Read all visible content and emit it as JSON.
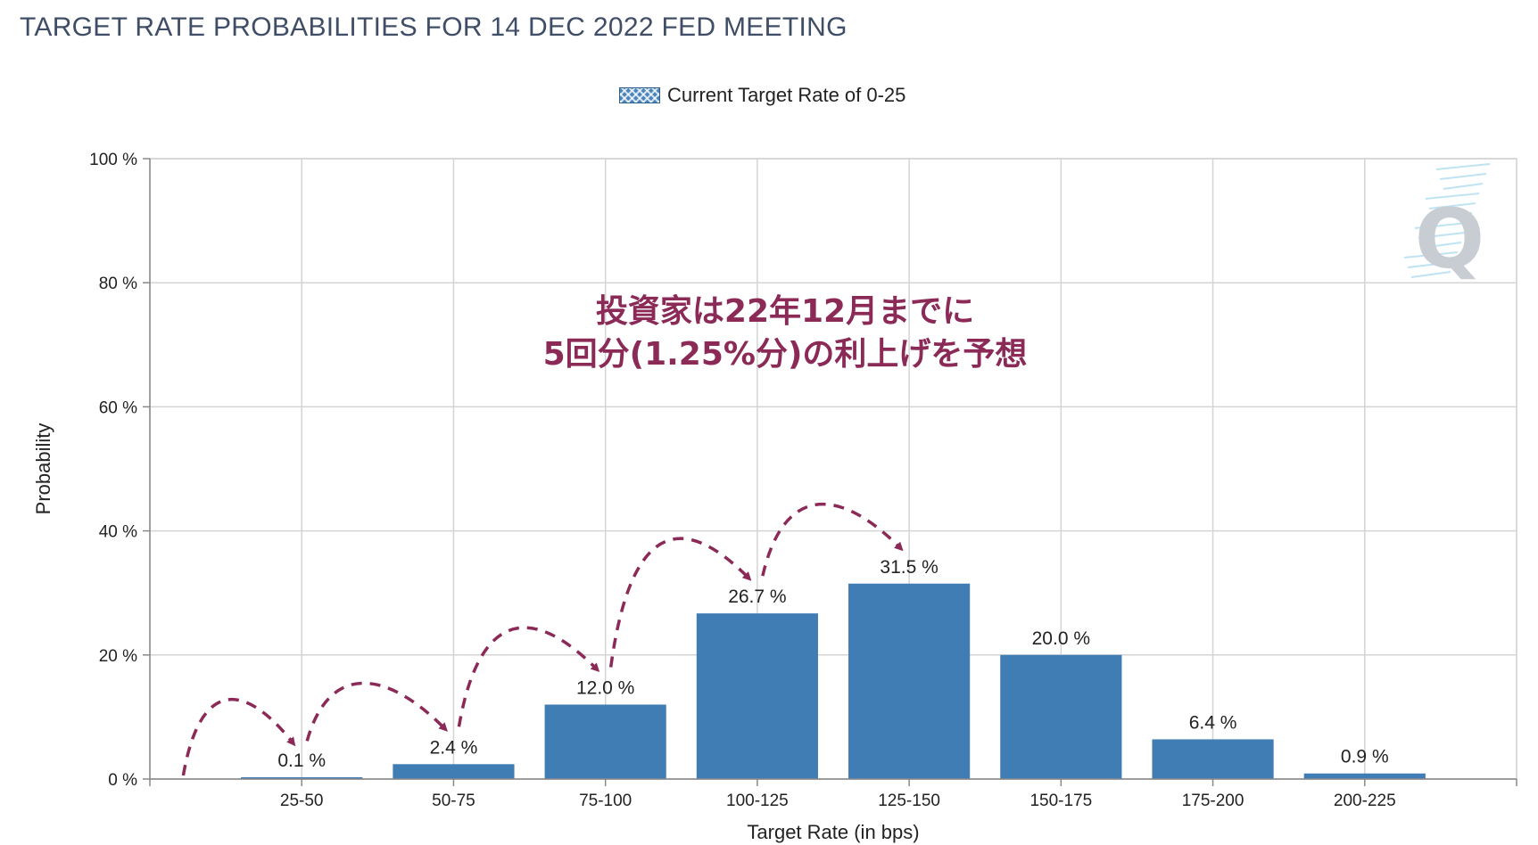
{
  "chart_data": {
    "type": "bar",
    "title": "TARGET RATE PROBABILITIES FOR 14 DEC 2022 FED MEETING",
    "xlabel": "Target Rate (in bps)",
    "ylabel": "Probability",
    "categories": [
      "25-50",
      "50-75",
      "75-100",
      "100-125",
      "125-150",
      "150-175",
      "175-200",
      "200-225"
    ],
    "series": [
      {
        "name": "Current Target Rate of 0-25",
        "values": [
          0.1,
          2.4,
          12.0,
          26.7,
          31.5,
          20.0,
          6.4,
          0.9
        ]
      }
    ],
    "data_labels": [
      "0.1 %",
      "2.4 %",
      "12.0 %",
      "26.7 %",
      "31.5 %",
      "20.0 %",
      "6.4 %",
      "0.9 %"
    ],
    "ylim": [
      0,
      100
    ],
    "yticks": [
      0,
      20,
      40,
      60,
      80,
      100
    ],
    "ytick_labels": [
      "0 %",
      "20 %",
      "40 %",
      "60 %",
      "80 %",
      "100 %"
    ],
    "grid": true,
    "legend_position": "top-center",
    "bar_color": "#417db5",
    "annotation": {
      "lines": [
        "投資家は22年12月までに",
        "5回分(1.25%分)の利上げを予想"
      ],
      "color": "#8b2a57"
    },
    "arrow_color": "#8b2a57"
  },
  "watermark": {
    "letter": "Q"
  }
}
